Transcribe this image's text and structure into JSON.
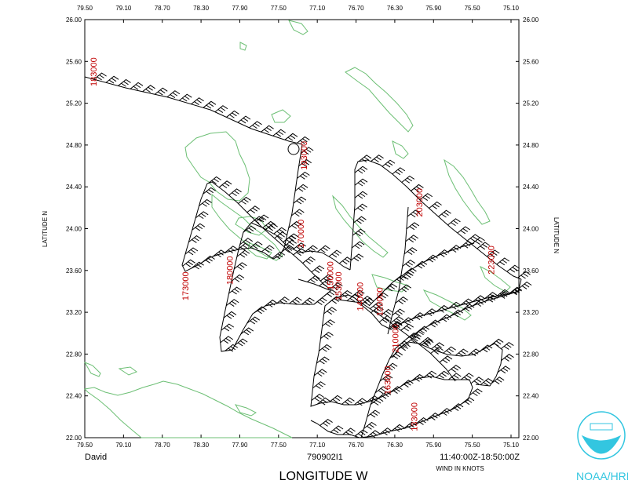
{
  "map": {
    "storm_name": "David",
    "mission_id": "790902I1",
    "time_range": "11:40:00Z-18:50:00Z",
    "wind_units": "WIND IN KNOTS",
    "x_axis_title": "LONGITUDE   W",
    "y_axis_title_left": "LATITUDE   N",
    "y_axis_title_right": "LATITUDE   N",
    "logo_text": "NOAA/HRD",
    "lon_ticks": [
      "79.50",
      "79.10",
      "78.70",
      "78.30",
      "77.90",
      "77.50",
      "77.10",
      "76.70",
      "76.30",
      "75.90",
      "75.50",
      "75.10"
    ],
    "lat_ticks": [
      "26.00",
      "25.60",
      "25.20",
      "24.80",
      "24.40",
      "24.00",
      "23.60",
      "23.20",
      "22.80",
      "22.40",
      "22.00"
    ],
    "time_labels": [
      {
        "text": "183000",
        "lon": 79.38,
        "lat": 25.5
      },
      {
        "text": "193000",
        "lon": 77.25,
        "lat": 24.7
      },
      {
        "text": "170000",
        "lon": 77.28,
        "lat": 23.95
      },
      {
        "text": "173000",
        "lon": 78.45,
        "lat": 23.45
      },
      {
        "text": "180000",
        "lon": 78.0,
        "lat": 23.6
      },
      {
        "text": "150000",
        "lon": 76.98,
        "lat": 23.55
      },
      {
        "text": "153000",
        "lon": 76.9,
        "lat": 23.45
      },
      {
        "text": "140000",
        "lon": 76.68,
        "lat": 23.35
      },
      {
        "text": "120000",
        "lon": 76.48,
        "lat": 23.3
      },
      {
        "text": "203000",
        "lon": 76.08,
        "lat": 24.25
      },
      {
        "text": "223000",
        "lon": 75.35,
        "lat": 23.7
      },
      {
        "text": "210000",
        "lon": 76.32,
        "lat": 22.95
      },
      {
        "text": "163000",
        "lon": 76.4,
        "lat": 22.55
      },
      {
        "text": "133000",
        "lon": 76.13,
        "lat": 22.2
      }
    ]
  }
}
